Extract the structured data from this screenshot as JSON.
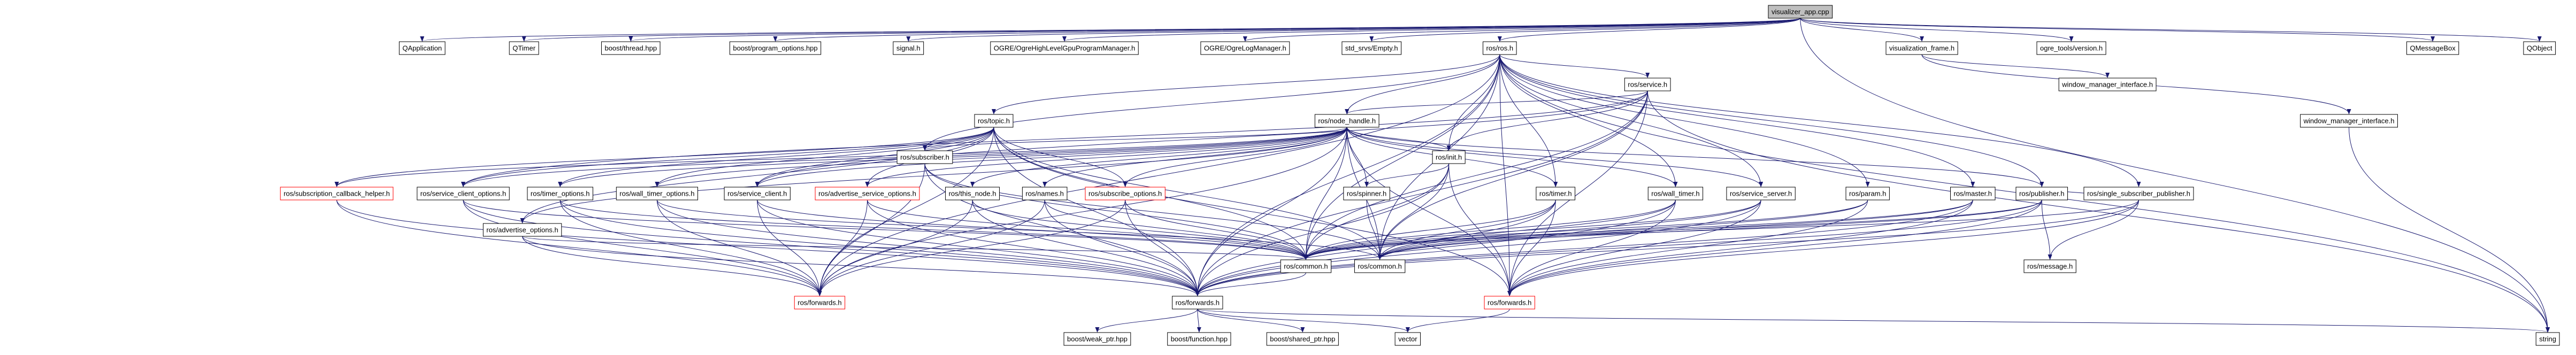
{
  "nodes": [
    {
      "label": "visualizer_app.cpp"
    },
    {
      "label": "QApplication"
    },
    {
      "label": "QTimer"
    },
    {
      "label": "boost/thread.hpp"
    },
    {
      "label": "boost/program_options.hpp"
    },
    {
      "label": "signal.h"
    },
    {
      "label": "OGRE/OgreHighLevelGpuProgramManager.h"
    },
    {
      "label": "OGRE/OgreLogManager.h"
    },
    {
      "label": "std_srvs/Empty.h"
    },
    {
      "label": "ros/ros.h"
    },
    {
      "label": "visualization_frame.h"
    },
    {
      "label": "ogre_tools/version.h"
    },
    {
      "label": "QMessageBox"
    },
    {
      "label": "QObject"
    },
    {
      "label": "ros/service.h"
    },
    {
      "label": "window_manager_interface.h"
    },
    {
      "label": "window_manager_interface.h"
    },
    {
      "label": "ros/topic.h"
    },
    {
      "label": "ros/node_handle.h"
    },
    {
      "label": "ros/subscriber.h"
    },
    {
      "label": "ros/init.h"
    },
    {
      "label": "ros/subscription_callback_helper.h"
    },
    {
      "label": "ros/service_client_options.h"
    },
    {
      "label": "ros/timer_options.h"
    },
    {
      "label": "ros/wall_timer_options.h"
    },
    {
      "label": "ros/service_client.h"
    },
    {
      "label": "ros/advertise_service_options.h"
    },
    {
      "label": "ros/this_node.h"
    },
    {
      "label": "ros/names.h"
    },
    {
      "label": "ros/subscribe_options.h"
    },
    {
      "label": "ros/spinner.h"
    },
    {
      "label": "ros/timer.h"
    },
    {
      "label": "ros/wall_timer.h"
    },
    {
      "label": "ros/service_server.h"
    },
    {
      "label": "ros/param.h"
    },
    {
      "label": "ros/master.h"
    },
    {
      "label": "ros/publisher.h"
    },
    {
      "label": "ros/single_subscriber_publisher.h"
    },
    {
      "label": "ros/advertise_options.h"
    },
    {
      "label": "ros/common.h"
    },
    {
      "label": "ros/common.h"
    },
    {
      "label": "ros/message.h"
    },
    {
      "label": "ros/forwards.h"
    },
    {
      "label": "ros/forwards.h"
    },
    {
      "label": "ros/forwards.h"
    },
    {
      "label": "boost/weak_ptr.hpp"
    },
    {
      "label": "boost/function.hpp"
    },
    {
      "label": "boost/shared_ptr.hpp"
    },
    {
      "label": "vector"
    },
    {
      "label": "string"
    }
  ]
}
